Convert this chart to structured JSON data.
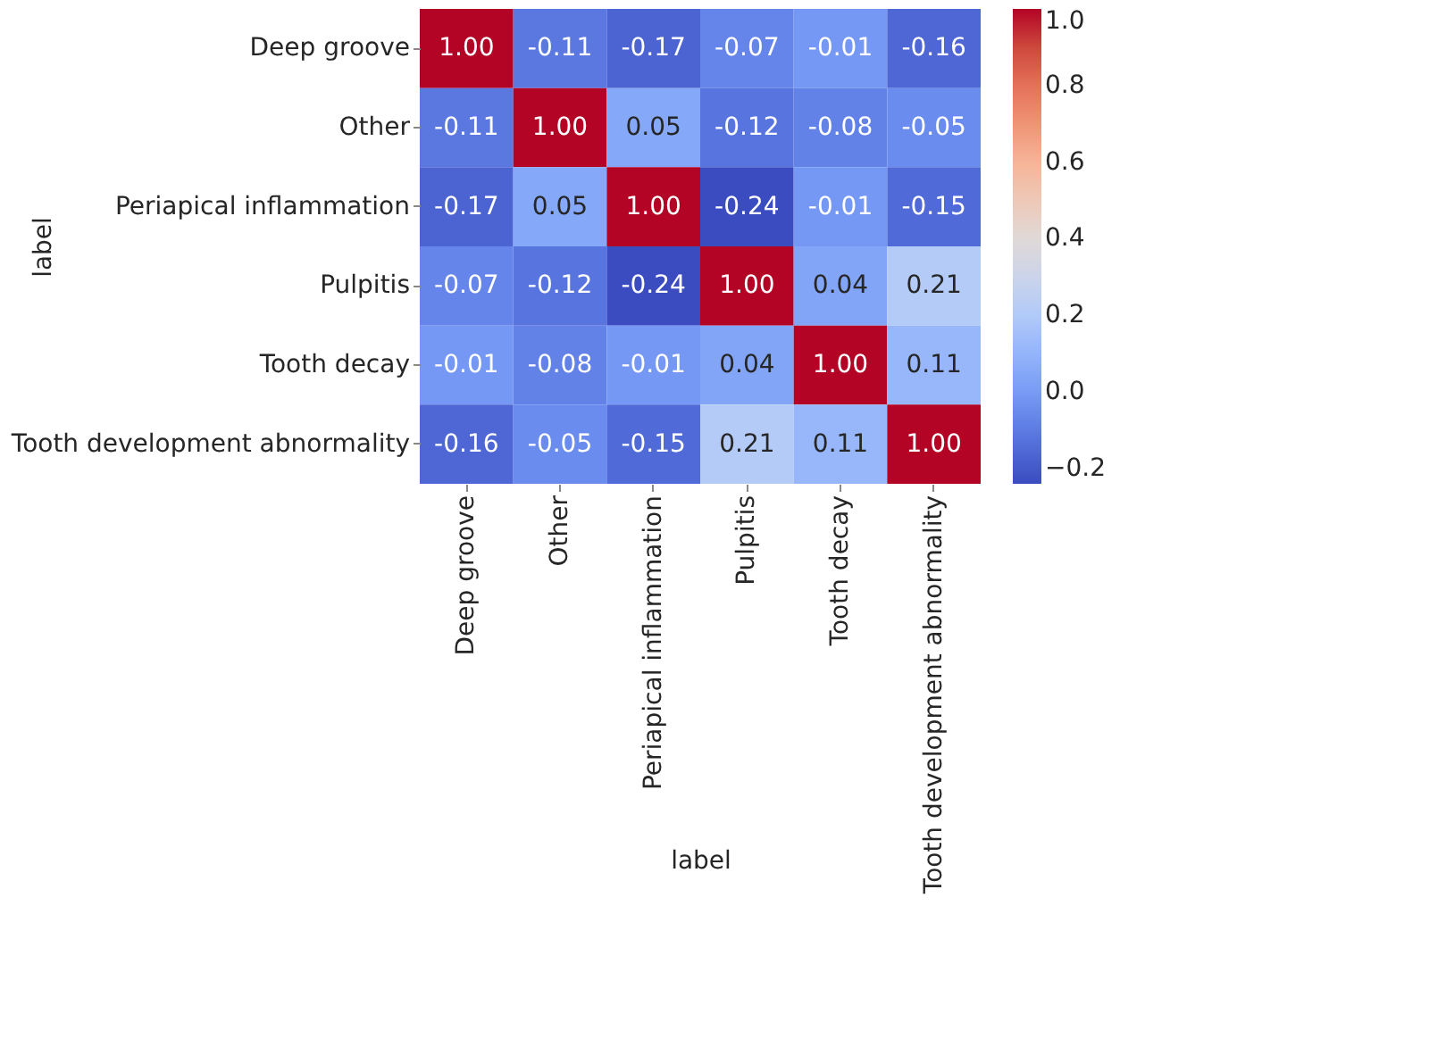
{
  "chart_data": {
    "type": "heatmap",
    "xlabel": "label",
    "ylabel": "label",
    "categories": [
      "Deep groove",
      "Other",
      "Periapical inflammation",
      "Pulpitis",
      "Tooth decay",
      "Tooth development abnormality"
    ],
    "y_categories": [
      "Deep groove",
      "Other",
      "Periapical inflammation",
      "Pulpitis",
      "Tooth decay",
      "Tooth development abnormality"
    ],
    "cells": [
      [
        1.0,
        -0.11,
        -0.17,
        -0.07,
        -0.01,
        -0.16
      ],
      [
        -0.11,
        1.0,
        0.05,
        -0.12,
        -0.08,
        -0.05
      ],
      [
        -0.17,
        0.05,
        1.0,
        -0.24,
        -0.01,
        -0.15
      ],
      [
        -0.07,
        -0.12,
        -0.24,
        1.0,
        0.04,
        0.21
      ],
      [
        -0.01,
        -0.08,
        -0.01,
        0.04,
        1.0,
        0.11
      ],
      [
        -0.16,
        -0.05,
        -0.15,
        0.21,
        0.11,
        1.0
      ]
    ],
    "cell_labels": [
      [
        "1.00",
        "-0.11",
        "-0.17",
        "-0.07",
        "-0.01",
        "-0.16"
      ],
      [
        "-0.11",
        "1.00",
        "0.05",
        "-0.12",
        "-0.08",
        "-0.05"
      ],
      [
        "-0.17",
        "0.05",
        "1.00",
        "-0.24",
        "-0.01",
        "-0.15"
      ],
      [
        "-0.07",
        "-0.12",
        "-0.24",
        "1.00",
        "0.04",
        "0.21"
      ],
      [
        "-0.01",
        "-0.08",
        "-0.01",
        "0.04",
        "1.00",
        "0.11"
      ],
      [
        "-0.16",
        "-0.05",
        "-0.15",
        "0.21",
        "0.11",
        "1.00"
      ]
    ],
    "clim": [
      -0.24,
      1.0
    ],
    "cticks": [
      {
        "value": -0.2,
        "label": "−0.2"
      },
      {
        "value": 0.0,
        "label": "0.0"
      },
      {
        "value": 0.2,
        "label": "0.2"
      },
      {
        "value": 0.4,
        "label": "0.4"
      },
      {
        "value": 0.6,
        "label": "0.6"
      },
      {
        "value": 0.8,
        "label": "0.8"
      },
      {
        "value": 1.0,
        "label": "1.0"
      }
    ]
  }
}
